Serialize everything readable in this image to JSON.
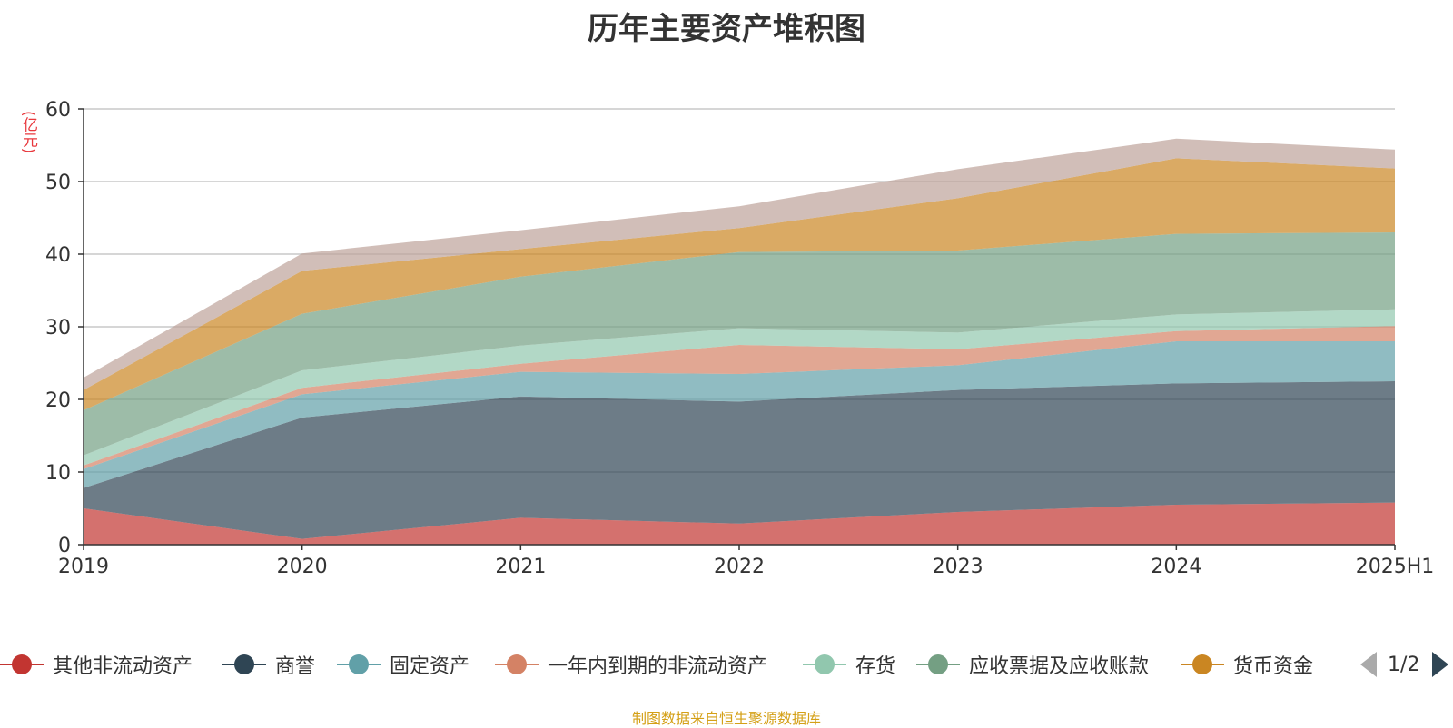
{
  "chart_data": {
    "type": "area",
    "title": "历年主要资产堆积图",
    "ylabel": "(亿元)",
    "xlabel": "",
    "stacked": true,
    "x": [
      "2019",
      "2020",
      "2021",
      "2022",
      "2023",
      "2024",
      "2025H1"
    ],
    "ylim": [
      0,
      60
    ],
    "yticks": [
      "0",
      "10",
      "20",
      "30",
      "40",
      "50",
      "60"
    ],
    "grid": true,
    "legend_position": "bottom",
    "series": [
      {
        "name": "其他非流动资产",
        "color": "#c23531",
        "values": [
          5.0,
          0.8,
          3.7,
          2.9,
          4.5,
          5.5,
          5.8
        ]
      },
      {
        "name": "商誉",
        "color": "#2f4554",
        "values": [
          2.8,
          16.7,
          16.7,
          16.8,
          16.8,
          16.7,
          16.7
        ]
      },
      {
        "name": "固定资产",
        "color": "#61a0a8",
        "values": [
          2.6,
          3.2,
          3.4,
          3.8,
          3.4,
          5.8,
          5.5
        ]
      },
      {
        "name": "一年内到期的非流动资产",
        "color": "#d48265",
        "values": [
          0.5,
          0.9,
          1.1,
          4.0,
          2.2,
          1.4,
          2.1
        ]
      },
      {
        "name": "存货",
        "color": "#91c7ae",
        "values": [
          1.4,
          2.4,
          2.5,
          2.3,
          2.3,
          2.3,
          2.3
        ]
      },
      {
        "name": "应收票据及应收账款",
        "color": "#749f83",
        "values": [
          6.2,
          7.8,
          9.5,
          10.5,
          11.3,
          11.1,
          10.6
        ]
      },
      {
        "name": "货币资金",
        "color": "#ca8622",
        "values": [
          2.8,
          5.9,
          3.8,
          3.3,
          7.2,
          10.4,
          8.8
        ]
      },
      {
        "name": "",
        "color": "#bda29a",
        "values": [
          1.7,
          2.4,
          2.6,
          3.0,
          4.0,
          2.7,
          2.6
        ]
      }
    ]
  },
  "legend": {
    "items": [
      {
        "label": "其他非流动资产",
        "color": "#c23531"
      },
      {
        "label": "商誉",
        "color": "#2f4554"
      },
      {
        "label": "固定资产",
        "color": "#61a0a8"
      },
      {
        "label": "一年内到期的非流动资产",
        "color": "#d48265"
      },
      {
        "label": "存货",
        "color": "#91c7ae"
      },
      {
        "label": "应收票据及应收账款",
        "color": "#749f83"
      },
      {
        "label": "货币资金",
        "color": "#ca8622"
      }
    ],
    "page_text": "1/2"
  },
  "source_note": "制图数据来自恒生聚源数据库"
}
